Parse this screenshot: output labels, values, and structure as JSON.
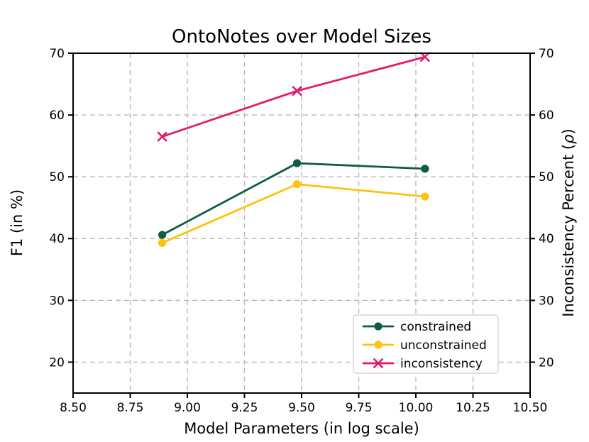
{
  "chart_data": {
    "type": "line",
    "title": "OntoNotes over Model Sizes",
    "xlabel": "Model Parameters (in log scale)",
    "ylabel_left": "F1 (in %)",
    "ylabel_right": "Inconsistency Percent (ρ)",
    "xlim": [
      8.5,
      10.5
    ],
    "ylim": [
      15,
      70
    ],
    "xticks": [
      8.5,
      8.75,
      9.0,
      9.25,
      9.5,
      9.75,
      10.0,
      10.25,
      10.5
    ],
    "xtick_labels": [
      "8.50",
      "8.75",
      "9.00",
      "9.25",
      "9.50",
      "9.75",
      "10.00",
      "10.25",
      "10.50"
    ],
    "yticks_left": [
      20,
      30,
      40,
      50,
      60,
      70
    ],
    "ytick_labels_left": [
      "20",
      "30",
      "40",
      "50",
      "60",
      "70"
    ],
    "yticks_right": [
      20,
      30,
      40,
      50,
      60,
      70
    ],
    "ytick_labels_right": [
      "20",
      "30",
      "40",
      "50",
      "60",
      "70"
    ],
    "grid": true,
    "grid_style": "dashed",
    "legend_position": "lower right",
    "x": [
      8.89,
      9.48,
      10.04
    ],
    "series": [
      {
        "name": "constrained",
        "axis": "left",
        "marker": "circle",
        "color": "#0e5c45",
        "values": [
          40.6,
          52.2,
          51.3
        ]
      },
      {
        "name": "unconstrained",
        "axis": "left",
        "marker": "circle",
        "color": "#fdc30f",
        "values": [
          39.3,
          48.8,
          46.8
        ]
      },
      {
        "name": "inconsistency",
        "axis": "right",
        "marker": "x",
        "color": "#e31c6d",
        "values": [
          56.5,
          63.9,
          69.4
        ]
      }
    ],
    "colors": {
      "grid": "#b8b8b8",
      "spine": "#000000",
      "text": "#000000",
      "legend_border": "#cccccc",
      "legend_fill": "#ffffff"
    }
  }
}
